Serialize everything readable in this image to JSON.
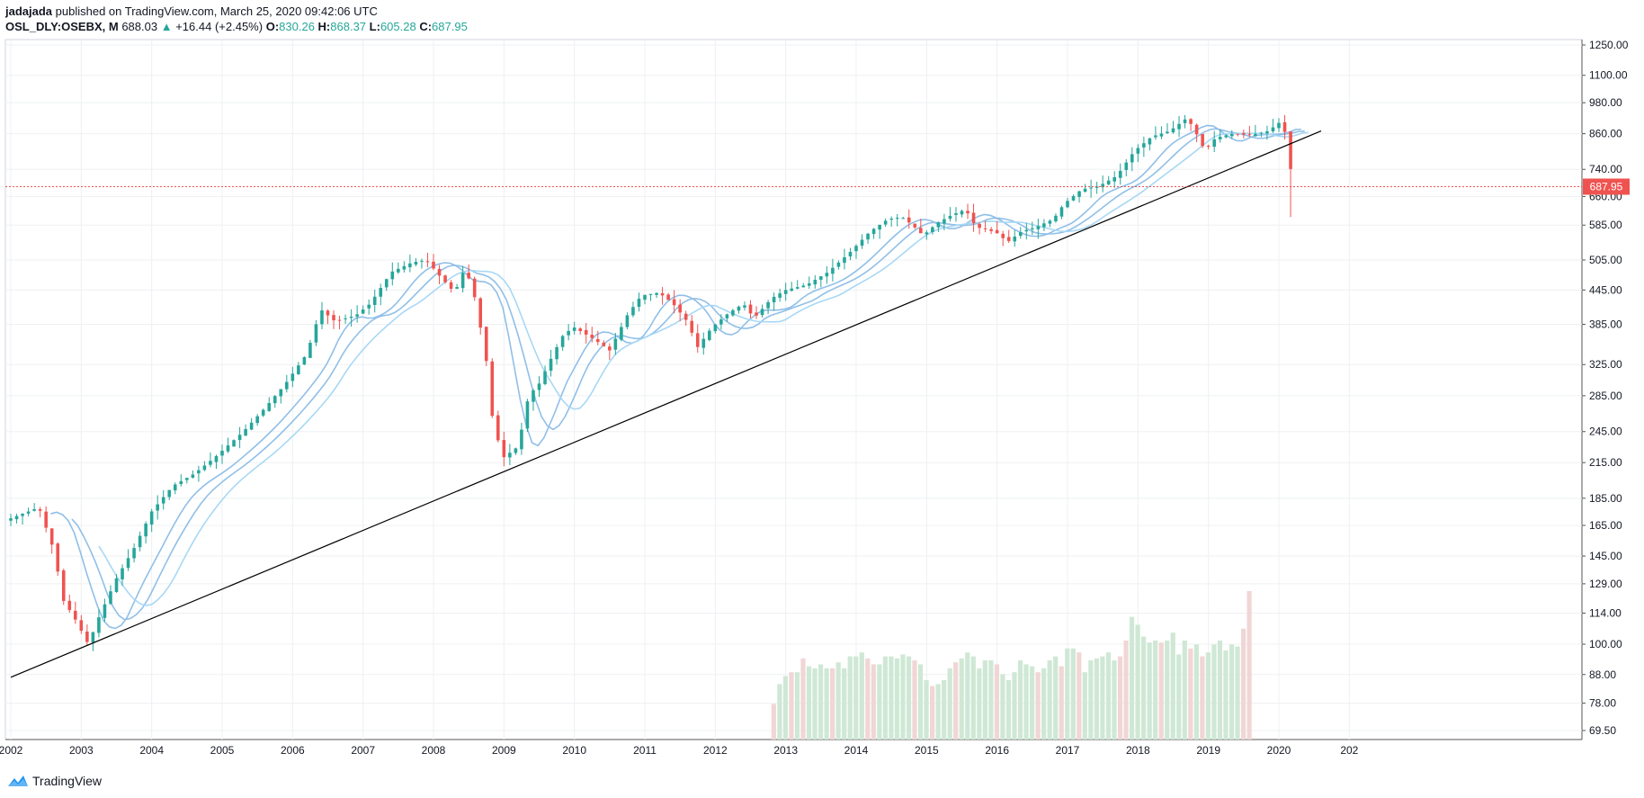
{
  "header": {
    "author": "jadajada",
    "published": "published on TradingView.com, March 25, 2020 09:42:06 UTC",
    "symbol": "OSL_DLY:OSEBX, M",
    "last": "688.03",
    "change_arrow": "▲",
    "change": "+16.44 (+2.45%)",
    "o_label": "O:",
    "o_val": "830.26",
    "h_label": "H:",
    "h_val": "868.37",
    "l_label": "L:",
    "l_val": "605.28",
    "c_label": "C:",
    "c_val": "687.95"
  },
  "footer": {
    "brand": "TradingView",
    "logo_icon": "tradingview-logo-icon"
  },
  "colors": {
    "up": "#26a69a",
    "down": "#ef5350",
    "ma": "#90bfe8",
    "ma_light": "#a8d8f5",
    "trend": "#000000",
    "vol_up": "#cfe8d5",
    "vol_down": "#f1d6d6",
    "grid": "#eef0f3",
    "price_line": "#ef5350"
  },
  "chart_data": {
    "type": "candlestick",
    "scale": "log",
    "current_price_label": "687.95",
    "current_price": 687.95,
    "y_ticks": [
      "1250.00",
      "1100.00",
      "980.00",
      "860.00",
      "740.00",
      "660.00",
      "585.00",
      "505.00",
      "445.00",
      "385.00",
      "325.00",
      "285.00",
      "245.00",
      "215.00",
      "185.00",
      "165.00",
      "145.00",
      "129.00",
      "114.00",
      "100.00",
      "88.00",
      "78.00",
      "69.50"
    ],
    "x_ticks": [
      "2002",
      "2003",
      "2004",
      "2005",
      "2006",
      "2007",
      "2008",
      "2009",
      "2010",
      "2011",
      "2012",
      "2013",
      "2014",
      "2015",
      "2016",
      "2017",
      "2018",
      "2019",
      "2020",
      "202"
    ],
    "price_path": [
      [
        2002.0,
        170
      ],
      [
        2002.4,
        178
      ],
      [
        2002.6,
        150
      ],
      [
        2002.75,
        120
      ],
      [
        2002.9,
        112
      ],
      [
        2003.1,
        100
      ],
      [
        2003.25,
        112
      ],
      [
        2003.5,
        132
      ],
      [
        2003.75,
        150
      ],
      [
        2004.0,
        175
      ],
      [
        2004.3,
        195
      ],
      [
        2004.6,
        205
      ],
      [
        2004.9,
        220
      ],
      [
        2005.3,
        245
      ],
      [
        2005.6,
        270
      ],
      [
        2005.9,
        300
      ],
      [
        2006.2,
        340
      ],
      [
        2006.4,
        410
      ],
      [
        2006.6,
        390
      ],
      [
        2006.9,
        400
      ],
      [
        2007.1,
        420
      ],
      [
        2007.4,
        480
      ],
      [
        2007.7,
        500
      ],
      [
        2007.9,
        505
      ],
      [
        2008.1,
        470
      ],
      [
        2008.3,
        440
      ],
      [
        2008.45,
        490
      ],
      [
        2008.6,
        425
      ],
      [
        2008.75,
        330
      ],
      [
        2008.85,
        250
      ],
      [
        2009.0,
        220
      ],
      [
        2009.2,
        230
      ],
      [
        2009.35,
        285
      ],
      [
        2009.5,
        300
      ],
      [
        2009.7,
        340
      ],
      [
        2009.85,
        370
      ],
      [
        2010.0,
        380
      ],
      [
        2010.3,
        360
      ],
      [
        2010.5,
        345
      ],
      [
        2010.75,
        400
      ],
      [
        2010.95,
        435
      ],
      [
        2011.2,
        440
      ],
      [
        2011.4,
        420
      ],
      [
        2011.6,
        390
      ],
      [
        2011.75,
        350
      ],
      [
        2011.95,
        380
      ],
      [
        2012.2,
        405
      ],
      [
        2012.4,
        420
      ],
      [
        2012.55,
        395
      ],
      [
        2012.8,
        430
      ],
      [
        2013.0,
        445
      ],
      [
        2013.3,
        455
      ],
      [
        2013.6,
        480
      ],
      [
        2013.9,
        520
      ],
      [
        2014.2,
        570
      ],
      [
        2014.45,
        600
      ],
      [
        2014.65,
        605
      ],
      [
        2014.8,
        585
      ],
      [
        2014.95,
        560
      ],
      [
        2015.15,
        590
      ],
      [
        2015.35,
        610
      ],
      [
        2015.55,
        625
      ],
      [
        2015.7,
        580
      ],
      [
        2015.85,
        575
      ],
      [
        2016.0,
        565
      ],
      [
        2016.15,
        545
      ],
      [
        2016.35,
        570
      ],
      [
        2016.55,
        580
      ],
      [
        2016.8,
        600
      ],
      [
        2016.95,
        640
      ],
      [
        2017.2,
        680
      ],
      [
        2017.45,
        690
      ],
      [
        2017.7,
        720
      ],
      [
        2017.95,
        800
      ],
      [
        2018.2,
        850
      ],
      [
        2018.45,
        870
      ],
      [
        2018.7,
        920
      ],
      [
        2018.85,
        850
      ],
      [
        2018.95,
        800
      ],
      [
        2019.1,
        845
      ],
      [
        2019.35,
        860
      ],
      [
        2019.6,
        855
      ],
      [
        2019.85,
        870
      ],
      [
        2020.0,
        900
      ],
      [
        2020.1,
        860
      ],
      [
        2020.2,
        688
      ]
    ],
    "trendline": [
      [
        2002.0,
        87
      ],
      [
        2020.6,
        870
      ]
    ],
    "volume": [
      0.18,
      0.28,
      0.32,
      0.34,
      0.34,
      0.41,
      0.37,
      0.36,
      0.38,
      0.36,
      0.36,
      0.39,
      0.36,
      0.42,
      0.42,
      0.44,
      0.41,
      0.38,
      0.38,
      0.42,
      0.42,
      0.41,
      0.43,
      0.42,
      0.4,
      0.38,
      0.3,
      0.27,
      0.28,
      0.3,
      0.36,
      0.39,
      0.41,
      0.44,
      0.42,
      0.36,
      0.4,
      0.4,
      0.38,
      0.33,
      0.3,
      0.34,
      0.4,
      0.38,
      0.37,
      0.34,
      0.36,
      0.4,
      0.42,
      0.37,
      0.46,
      0.46,
      0.44,
      0.34,
      0.4,
      0.41,
      0.42,
      0.44,
      0.4,
      0.42,
      0.5,
      0.62,
      0.58,
      0.52,
      0.49,
      0.5,
      0.49,
      0.5,
      0.54,
      0.43,
      0.5,
      0.46,
      0.48,
      0.42,
      0.44,
      0.48,
      0.5,
      0.45,
      0.48,
      0.47,
      0.56,
      0.75
    ]
  }
}
